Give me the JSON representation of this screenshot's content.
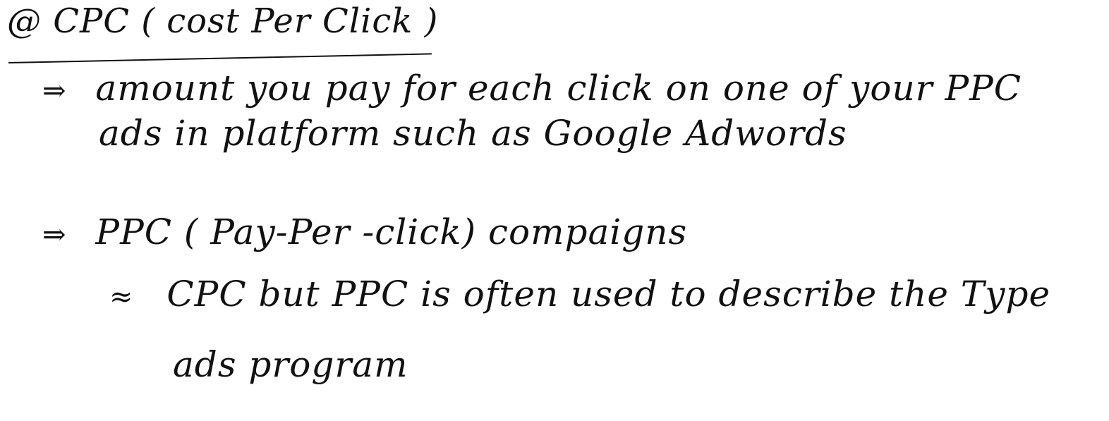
{
  "note": {
    "title": "@ CPC ( cost Per Click )",
    "bullets": [
      {
        "marker": "⇒",
        "line1": "amount you pay for each click on one of your PPC",
        "line2": "ads in platform such as Google Adwords"
      },
      {
        "marker": "⇒",
        "line1": "PPC ( Pay-Per -click) compaigns"
      }
    ],
    "sub_point": {
      "marker": "≈",
      "line1": "CPC but PPC is often used to describe the Type",
      "line2": "ads program"
    }
  }
}
